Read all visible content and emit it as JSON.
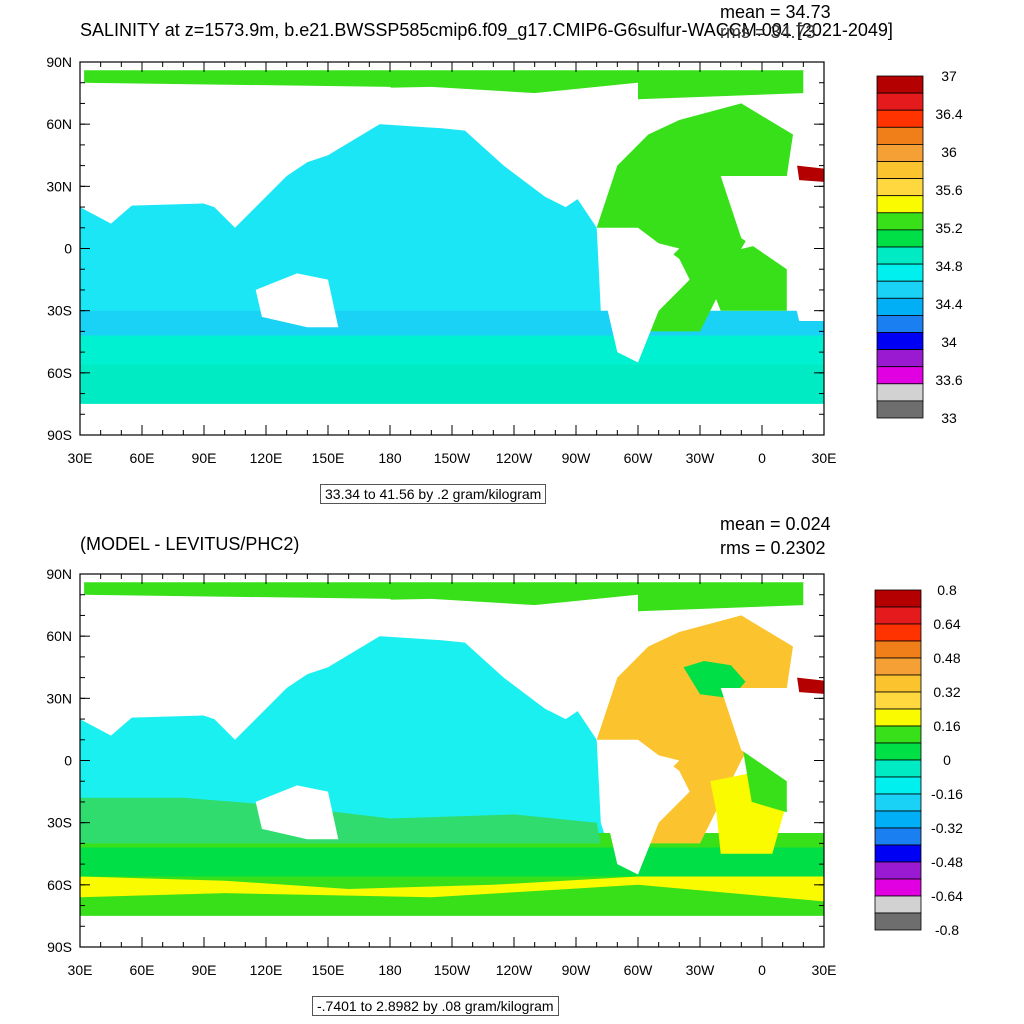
{
  "panels": [
    {
      "title": "SALINITY at z=1573.9m, b.e21.BWSSP585cmip6.f09_g17.CMIP6-G6sulfur-WACCM.001 [2021-2049]",
      "mean_text": "mean = 34.73",
      "rms_text": "rms = 34.73",
      "range_text": "33.34 to 41.56 by .2 gram/kilogram",
      "lat_ticks": [
        "90N",
        "60N",
        "30N",
        "0",
        "30S",
        "60S",
        "90S"
      ],
      "lon_ticks": [
        "30E",
        "60E",
        "90E",
        "120E",
        "150E",
        "180",
        "150W",
        "120W",
        "90W",
        "60W",
        "30W",
        "0",
        "30E"
      ],
      "colorbar_labels": [
        "37",
        "36.4",
        "36",
        "35.6",
        "35.2",
        "34.8",
        "34.4",
        "34",
        "33.6",
        "33"
      ],
      "colors": [
        "#b40000",
        "#e41a1c",
        "#ff3300",
        "#f07f1a",
        "#f5a035",
        "#fbc42e",
        "#ffd840",
        "#fbfb00",
        "#38e01a",
        "#00e046",
        "#00ebc3",
        "#00f0f0",
        "#1ad2f5",
        "#00aff5",
        "#1a7ff0",
        "#0000f5",
        "#9a1ad2",
        "#e100e1",
        "#d2d2d2",
        "#6e6e6e"
      ]
    },
    {
      "title": "(MODEL - LEVITUS/PHC2)",
      "mean_text": "mean = 0.024",
      "rms_text": "rms = 0.2302",
      "range_text": "-.7401 to 2.8982 by .08 gram/kilogram",
      "lat_ticks": [
        "90N",
        "60N",
        "30N",
        "0",
        "30S",
        "60S",
        "90S"
      ],
      "lon_ticks": [
        "30E",
        "60E",
        "90E",
        "120E",
        "150E",
        "180",
        "150W",
        "120W",
        "90W",
        "60W",
        "30W",
        "0",
        "30E"
      ],
      "colorbar_labels": [
        "0.8",
        "0.64",
        "0.48",
        "0.32",
        "0.16",
        "0",
        "-0.16",
        "-0.32",
        "-0.48",
        "-0.64",
        "-0.8"
      ],
      "colors": [
        "#b40000",
        "#e41a1c",
        "#ff3300",
        "#f07f1a",
        "#f5a035",
        "#fbc42e",
        "#ffd840",
        "#fbfb00",
        "#38e01a",
        "#00e046",
        "#00ebc3",
        "#00f0f0",
        "#1ad2f5",
        "#00aff5",
        "#1a7ff0",
        "#0000f5",
        "#9a1ad2",
        "#e100e1",
        "#d2d2d2",
        "#6e6e6e"
      ]
    }
  ],
  "chart_data": [
    {
      "type": "heatmap",
      "title": "SALINITY at z=1573.9m, b.e21.BWSSP585cmip6.f09_g17.CMIP6-G6sulfur-WACCM.001 [2021-2049]",
      "xlabel": "",
      "ylabel": "",
      "x_ticks": [
        "30E",
        "60E",
        "90E",
        "120E",
        "150E",
        "180",
        "150W",
        "120W",
        "90W",
        "60W",
        "30W",
        "0",
        "30E"
      ],
      "y_ticks": [
        "90N",
        "60N",
        "30N",
        "0",
        "30S",
        "60S",
        "90S"
      ],
      "xlim": [
        30,
        390
      ],
      "ylim": [
        -90,
        90
      ],
      "mean": 34.73,
      "rms": 34.73,
      "contour_min": 33.34,
      "contour_max": 41.56,
      "contour_interval": 0.2,
      "units": "gram/kilogram",
      "colorbar_ticks": [
        37,
        36.4,
        36,
        35.6,
        35.2,
        34.8,
        34.4,
        34,
        33.6,
        33
      ],
      "colorbar_range": [
        33,
        37
      ],
      "grid": false
    },
    {
      "type": "heatmap",
      "title": "(MODEL - LEVITUS/PHC2)",
      "xlabel": "",
      "ylabel": "",
      "x_ticks": [
        "30E",
        "60E",
        "90E",
        "120E",
        "150E",
        "180",
        "150W",
        "120W",
        "90W",
        "60W",
        "30W",
        "0",
        "30E"
      ],
      "y_ticks": [
        "90N",
        "60N",
        "30N",
        "0",
        "30S",
        "60S",
        "90S"
      ],
      "xlim": [
        30,
        390
      ],
      "ylim": [
        -90,
        90
      ],
      "mean": 0.024,
      "rms": 0.2302,
      "contour_min": -0.7401,
      "contour_max": 2.8982,
      "contour_interval": 0.08,
      "units": "gram/kilogram",
      "colorbar_ticks": [
        0.8,
        0.64,
        0.48,
        0.32,
        0.16,
        0,
        -0.16,
        -0.32,
        -0.48,
        -0.64,
        -0.8
      ],
      "colorbar_range": [
        -0.8,
        0.8
      ],
      "grid": false
    }
  ]
}
